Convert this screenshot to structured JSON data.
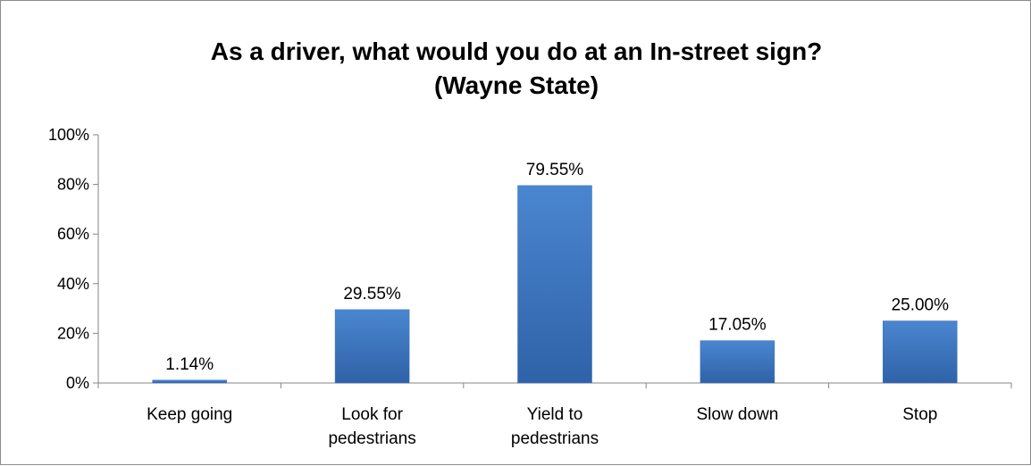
{
  "chart_data": {
    "type": "bar",
    "title_lines": [
      "As a driver, what would you do at an In-street sign?",
      "(Wayne State)"
    ],
    "categories": [
      [
        "Keep going"
      ],
      [
        "Look for",
        "pedestrians"
      ],
      [
        "Yield to",
        "pedestrians"
      ],
      [
        "Slow down"
      ],
      [
        "Stop"
      ]
    ],
    "values": [
      1.14,
      29.55,
      79.55,
      17.05,
      25.0
    ],
    "data_labels": [
      "1.14%",
      "29.55%",
      "79.55%",
      "17.05%",
      "25.00%"
    ],
    "y_ticks": [
      "0%",
      "20%",
      "40%",
      "60%",
      "80%",
      "100%"
    ],
    "ylim": [
      0,
      100
    ],
    "xlabel": "",
    "ylabel": "",
    "grid": false,
    "legend": "none",
    "bar_color": "#4a86d0",
    "bar_color_dark": "#2f62a8"
  }
}
